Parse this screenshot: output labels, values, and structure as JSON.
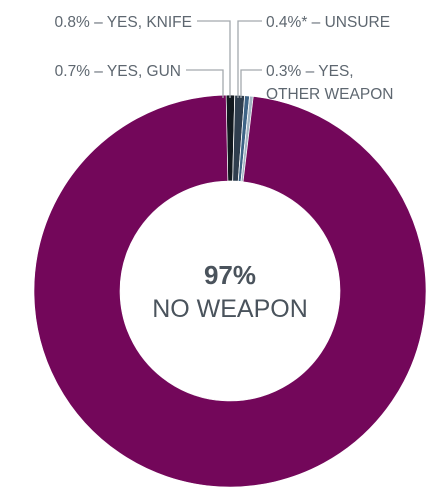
{
  "chart_data": {
    "type": "pie",
    "style": "donut",
    "slices": [
      {
        "label": "NO WEAPON",
        "value": 97,
        "color": "#73075a"
      },
      {
        "label": "0.7% – YES, GUN",
        "value": 0.7,
        "color": "#12191f"
      },
      {
        "label": "0.8% – YES, KNIFE",
        "value": 0.8,
        "color": "#2f3e4e"
      },
      {
        "label": "0.4%* – UNSURE",
        "value": 0.4,
        "color": "#3e6486"
      },
      {
        "label": "0.3% – YES, OTHER WEAPON",
        "value": 0.3,
        "color": "#a3b4c2"
      }
    ],
    "center": {
      "value": "97%",
      "label": "NO WEAPON"
    },
    "labels": {
      "knife": "0.8% – YES, KNIFE",
      "unsure": "0.4%* – UNSURE",
      "gun": "0.7% – YES, GUN",
      "other_line1": "0.3% – YES,",
      "other_line2": "OTHER WEAPON"
    }
  }
}
